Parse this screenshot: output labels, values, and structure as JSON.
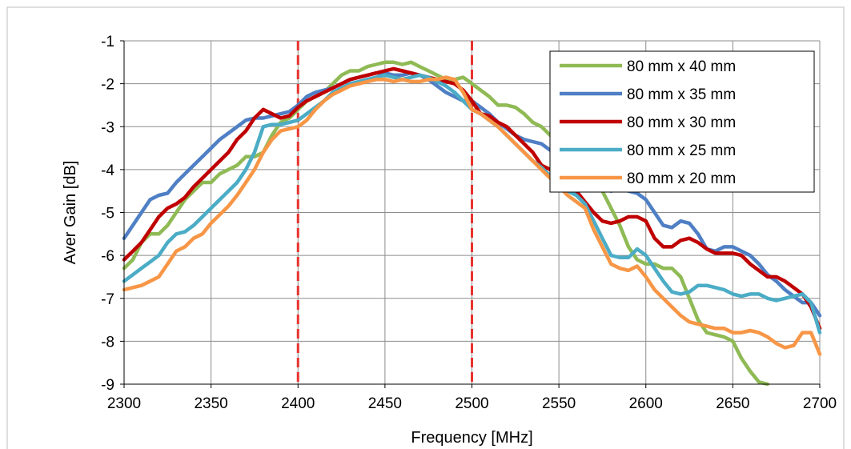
{
  "chart_data": {
    "type": "line",
    "title": "",
    "xlabel": "Frequency [MHz]",
    "ylabel": "Aver Gain [dB]",
    "xlim": [
      2300,
      2700
    ],
    "ylim": [
      -9,
      -1
    ],
    "x_ticks": [
      2300,
      2350,
      2400,
      2450,
      2500,
      2550,
      2600,
      2650,
      2700
    ],
    "y_ticks": [
      -1,
      -2,
      -3,
      -4,
      -5,
      -6,
      -7,
      -8,
      -9
    ],
    "grid": true,
    "legend_position": "top-right",
    "reference_lines": [
      {
        "x": 2400,
        "color": "#e8322e",
        "style": "dashed"
      },
      {
        "x": 2500,
        "color": "#e8322e",
        "style": "dashed"
      }
    ],
    "series": [
      {
        "name": "80 mm x 40 mm",
        "color": "#8fba55",
        "x": [
          2300,
          2305,
          2310,
          2315,
          2320,
          2325,
          2330,
          2335,
          2340,
          2345,
          2350,
          2355,
          2360,
          2365,
          2370,
          2375,
          2380,
          2385,
          2390,
          2395,
          2400,
          2405,
          2410,
          2415,
          2420,
          2425,
          2430,
          2435,
          2440,
          2445,
          2450,
          2455,
          2460,
          2465,
          2470,
          2475,
          2480,
          2485,
          2490,
          2495,
          2500,
          2505,
          2510,
          2515,
          2520,
          2525,
          2530,
          2535,
          2540,
          2545,
          2550,
          2555,
          2560,
          2565,
          2570,
          2575,
          2580,
          2585,
          2590,
          2595,
          2600,
          2605,
          2610,
          2615,
          2620,
          2625,
          2630,
          2635,
          2640,
          2645,
          2650,
          2655,
          2660,
          2665,
          2670
        ],
        "y": [
          -6.3,
          -6.1,
          -5.7,
          -5.5,
          -5.5,
          -5.3,
          -5.0,
          -4.7,
          -4.5,
          -4.3,
          -4.3,
          -4.1,
          -4.0,
          -3.9,
          -3.7,
          -3.7,
          -3.6,
          -3.2,
          -2.9,
          -2.8,
          -2.6,
          -2.4,
          -2.3,
          -2.2,
          -2.0,
          -1.8,
          -1.7,
          -1.7,
          -1.6,
          -1.55,
          -1.5,
          -1.5,
          -1.55,
          -1.5,
          -1.6,
          -1.7,
          -1.8,
          -1.9,
          -1.9,
          -1.85,
          -2.0,
          -2.15,
          -2.3,
          -2.5,
          -2.5,
          -2.55,
          -2.7,
          -2.9,
          -3.0,
          -3.2,
          -3.4,
          -3.6,
          -3.8,
          -4.0,
          -4.3,
          -4.5,
          -4.9,
          -5.3,
          -5.8,
          -6.1,
          -6.2,
          -6.2,
          -6.3,
          -6.3,
          -6.5,
          -7.0,
          -7.5,
          -7.8,
          -7.85,
          -7.9,
          -8.0,
          -8.4,
          -8.7,
          -8.95,
          -9.0
        ]
      },
      {
        "name": "80 mm x 35 mm",
        "color": "#4f7fc4",
        "x": [
          2300,
          2305,
          2310,
          2315,
          2320,
          2325,
          2330,
          2335,
          2340,
          2345,
          2350,
          2355,
          2360,
          2365,
          2370,
          2375,
          2380,
          2385,
          2390,
          2395,
          2400,
          2405,
          2410,
          2415,
          2420,
          2425,
          2430,
          2435,
          2440,
          2445,
          2450,
          2455,
          2460,
          2465,
          2470,
          2475,
          2480,
          2485,
          2490,
          2495,
          2500,
          2505,
          2510,
          2515,
          2520,
          2525,
          2530,
          2535,
          2540,
          2545,
          2550,
          2555,
          2560,
          2565,
          2570,
          2575,
          2580,
          2585,
          2590,
          2595,
          2600,
          2605,
          2610,
          2615,
          2620,
          2625,
          2630,
          2635,
          2640,
          2645,
          2650,
          2655,
          2660,
          2665,
          2670,
          2675,
          2680,
          2685,
          2690,
          2695,
          2700
        ],
        "y": [
          -5.6,
          -5.3,
          -5.0,
          -4.7,
          -4.6,
          -4.55,
          -4.3,
          -4.1,
          -3.9,
          -3.7,
          -3.5,
          -3.3,
          -3.15,
          -3.0,
          -2.85,
          -2.8,
          -2.8,
          -2.75,
          -2.7,
          -2.65,
          -2.5,
          -2.3,
          -2.2,
          -2.15,
          -2.1,
          -2.0,
          -1.9,
          -1.85,
          -1.8,
          -1.75,
          -1.75,
          -1.8,
          -1.8,
          -1.75,
          -1.8,
          -1.9,
          -2.05,
          -2.2,
          -2.3,
          -2.4,
          -2.4,
          -2.55,
          -2.7,
          -2.9,
          -3.05,
          -3.2,
          -3.3,
          -3.35,
          -3.4,
          -3.55,
          -3.7,
          -3.9,
          -4.1,
          -4.3,
          -4.4,
          -4.45,
          -4.5,
          -4.45,
          -4.5,
          -4.55,
          -4.7,
          -5.0,
          -5.3,
          -5.35,
          -5.2,
          -5.25,
          -5.5,
          -5.85,
          -5.9,
          -5.8,
          -5.8,
          -5.9,
          -6.0,
          -6.2,
          -6.45,
          -6.6,
          -6.8,
          -6.95,
          -7.1,
          -7.1,
          -7.4
        ]
      },
      {
        "name": "80 mm x 30 mm",
        "color": "#c00000",
        "x": [
          2300,
          2305,
          2310,
          2315,
          2320,
          2325,
          2330,
          2335,
          2340,
          2345,
          2350,
          2355,
          2360,
          2365,
          2370,
          2375,
          2380,
          2385,
          2390,
          2395,
          2400,
          2405,
          2410,
          2415,
          2420,
          2425,
          2430,
          2435,
          2440,
          2445,
          2450,
          2455,
          2460,
          2465,
          2470,
          2475,
          2480,
          2485,
          2490,
          2495,
          2500,
          2505,
          2510,
          2515,
          2520,
          2525,
          2530,
          2535,
          2540,
          2545,
          2550,
          2555,
          2560,
          2565,
          2570,
          2575,
          2580,
          2585,
          2590,
          2595,
          2600,
          2605,
          2610,
          2615,
          2620,
          2625,
          2630,
          2635,
          2640,
          2645,
          2650,
          2655,
          2660,
          2665,
          2670,
          2675,
          2680,
          2685,
          2690,
          2695,
          2700
        ],
        "y": [
          -6.1,
          -5.9,
          -5.7,
          -5.4,
          -5.1,
          -4.9,
          -4.8,
          -4.65,
          -4.4,
          -4.2,
          -4.0,
          -3.8,
          -3.6,
          -3.3,
          -3.1,
          -2.8,
          -2.6,
          -2.7,
          -2.8,
          -2.75,
          -2.55,
          -2.4,
          -2.3,
          -2.2,
          -2.1,
          -2.0,
          -1.9,
          -1.85,
          -1.8,
          -1.75,
          -1.7,
          -1.65,
          -1.7,
          -1.75,
          -1.8,
          -1.85,
          -1.9,
          -1.95,
          -2.0,
          -2.15,
          -2.4,
          -2.7,
          -2.75,
          -2.9,
          -3.0,
          -3.2,
          -3.4,
          -3.6,
          -3.9,
          -4.0,
          -4.15,
          -4.3,
          -4.5,
          -4.75,
          -5.0,
          -5.2,
          -5.25,
          -5.2,
          -5.1,
          -5.1,
          -5.2,
          -5.6,
          -5.8,
          -5.8,
          -5.65,
          -5.6,
          -5.7,
          -5.85,
          -5.95,
          -5.95,
          -5.95,
          -6.0,
          -6.2,
          -6.35,
          -6.5,
          -6.5,
          -6.6,
          -6.75,
          -6.9,
          -7.2,
          -7.7
        ]
      },
      {
        "name": "80 mm x 25 mm",
        "color": "#4bacc6",
        "x": [
          2300,
          2305,
          2310,
          2315,
          2320,
          2325,
          2330,
          2335,
          2340,
          2345,
          2350,
          2355,
          2360,
          2365,
          2370,
          2375,
          2380,
          2385,
          2390,
          2395,
          2400,
          2405,
          2410,
          2415,
          2420,
          2425,
          2430,
          2435,
          2440,
          2445,
          2450,
          2455,
          2460,
          2465,
          2470,
          2475,
          2480,
          2485,
          2490,
          2495,
          2500,
          2505,
          2510,
          2515,
          2520,
          2525,
          2530,
          2535,
          2540,
          2545,
          2550,
          2555,
          2560,
          2565,
          2570,
          2575,
          2580,
          2585,
          2590,
          2595,
          2600,
          2605,
          2610,
          2615,
          2620,
          2625,
          2630,
          2635,
          2640,
          2645,
          2650,
          2655,
          2660,
          2665,
          2670,
          2675,
          2680,
          2685,
          2690,
          2695,
          2700
        ],
        "y": [
          -6.6,
          -6.45,
          -6.3,
          -6.15,
          -6.0,
          -5.7,
          -5.5,
          -5.45,
          -5.3,
          -5.1,
          -4.9,
          -4.7,
          -4.5,
          -4.3,
          -4.0,
          -3.6,
          -3.0,
          -2.95,
          -2.95,
          -2.9,
          -2.85,
          -2.7,
          -2.55,
          -2.4,
          -2.2,
          -2.1,
          -2.0,
          -1.95,
          -1.9,
          -1.85,
          -1.8,
          -1.85,
          -1.9,
          -1.85,
          -1.8,
          -1.85,
          -1.95,
          -2.05,
          -2.2,
          -2.4,
          -2.6,
          -2.7,
          -2.85,
          -3.0,
          -3.2,
          -3.4,
          -3.6,
          -3.8,
          -3.95,
          -4.15,
          -4.4,
          -4.5,
          -4.6,
          -4.8,
          -5.2,
          -5.6,
          -6.0,
          -6.05,
          -6.05,
          -5.85,
          -6.0,
          -6.3,
          -6.6,
          -6.85,
          -6.9,
          -6.85,
          -6.7,
          -6.7,
          -6.75,
          -6.8,
          -6.9,
          -6.95,
          -6.9,
          -6.9,
          -7.0,
          -7.05,
          -7.0,
          -6.95,
          -6.9,
          -7.1,
          -7.8
        ]
      },
      {
        "name": "80 mm x 20 mm",
        "color": "#f79646",
        "x": [
          2300,
          2305,
          2310,
          2315,
          2320,
          2325,
          2330,
          2335,
          2340,
          2345,
          2350,
          2355,
          2360,
          2365,
          2370,
          2375,
          2380,
          2385,
          2390,
          2395,
          2400,
          2405,
          2410,
          2415,
          2420,
          2425,
          2430,
          2435,
          2440,
          2445,
          2450,
          2455,
          2460,
          2465,
          2470,
          2475,
          2480,
          2485,
          2490,
          2495,
          2500,
          2505,
          2510,
          2515,
          2520,
          2525,
          2530,
          2535,
          2540,
          2545,
          2550,
          2555,
          2560,
          2565,
          2570,
          2575,
          2580,
          2585,
          2590,
          2595,
          2600,
          2605,
          2610,
          2615,
          2620,
          2625,
          2630,
          2635,
          2640,
          2645,
          2650,
          2655,
          2660,
          2665,
          2670,
          2675,
          2680,
          2685,
          2690,
          2695,
          2700
        ],
        "y": [
          -6.8,
          -6.75,
          -6.7,
          -6.6,
          -6.5,
          -6.2,
          -5.9,
          -5.8,
          -5.6,
          -5.5,
          -5.25,
          -5.05,
          -4.85,
          -4.6,
          -4.3,
          -4.0,
          -3.6,
          -3.3,
          -3.1,
          -3.05,
          -3.0,
          -2.85,
          -2.6,
          -2.4,
          -2.25,
          -2.15,
          -2.05,
          -2.0,
          -1.95,
          -1.9,
          -1.9,
          -1.95,
          -1.9,
          -1.95,
          -1.95,
          -1.9,
          -1.9,
          -1.85,
          -1.9,
          -2.2,
          -2.6,
          -2.7,
          -2.85,
          -3.0,
          -3.2,
          -3.4,
          -3.6,
          -3.8,
          -4.0,
          -4.2,
          -4.4,
          -4.6,
          -4.75,
          -4.9,
          -5.4,
          -5.8,
          -6.2,
          -6.3,
          -6.35,
          -6.25,
          -6.5,
          -6.8,
          -7.0,
          -7.2,
          -7.4,
          -7.55,
          -7.6,
          -7.65,
          -7.7,
          -7.7,
          -7.8,
          -7.8,
          -7.75,
          -7.8,
          -7.9,
          -8.05,
          -8.15,
          -8.1,
          -7.8,
          -7.8,
          -8.3
        ]
      }
    ]
  }
}
